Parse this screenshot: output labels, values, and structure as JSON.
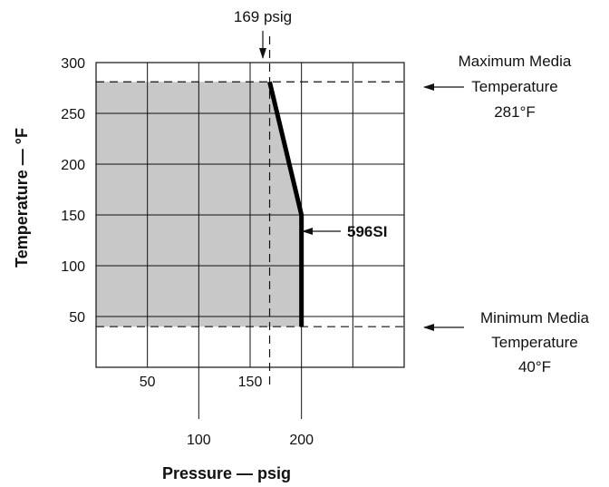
{
  "chart_data": {
    "type": "line",
    "title": "",
    "xlabel": "Pressure — psig",
    "ylabel": "Temperature — °F",
    "xlim": [
      0,
      300
    ],
    "ylim": [
      0,
      300
    ],
    "x_ticks": [
      50,
      100,
      150,
      200
    ],
    "y_ticks": [
      50,
      100,
      150,
      200,
      250,
      300
    ],
    "grid": true,
    "series": [
      {
        "name": "596SI",
        "x": [
          169,
          200,
          200
        ],
        "y": [
          281,
          150,
          40
        ]
      }
    ],
    "shaded_region": {
      "x": [
        0,
        169,
        200,
        200,
        0
      ],
      "y": [
        281,
        281,
        150,
        40,
        40
      ]
    },
    "reference_lines": {
      "max_temp": 281,
      "min_temp": 40,
      "pressure": 169
    },
    "annotations": {
      "pressure_line": "169 psig",
      "max_line1": "Maximum Media",
      "max_line2": "Temperature",
      "max_line3": "281°F",
      "min_line1": "Minimum Media",
      "min_line2": "Temperature",
      "min_line3": "40°F"
    }
  }
}
